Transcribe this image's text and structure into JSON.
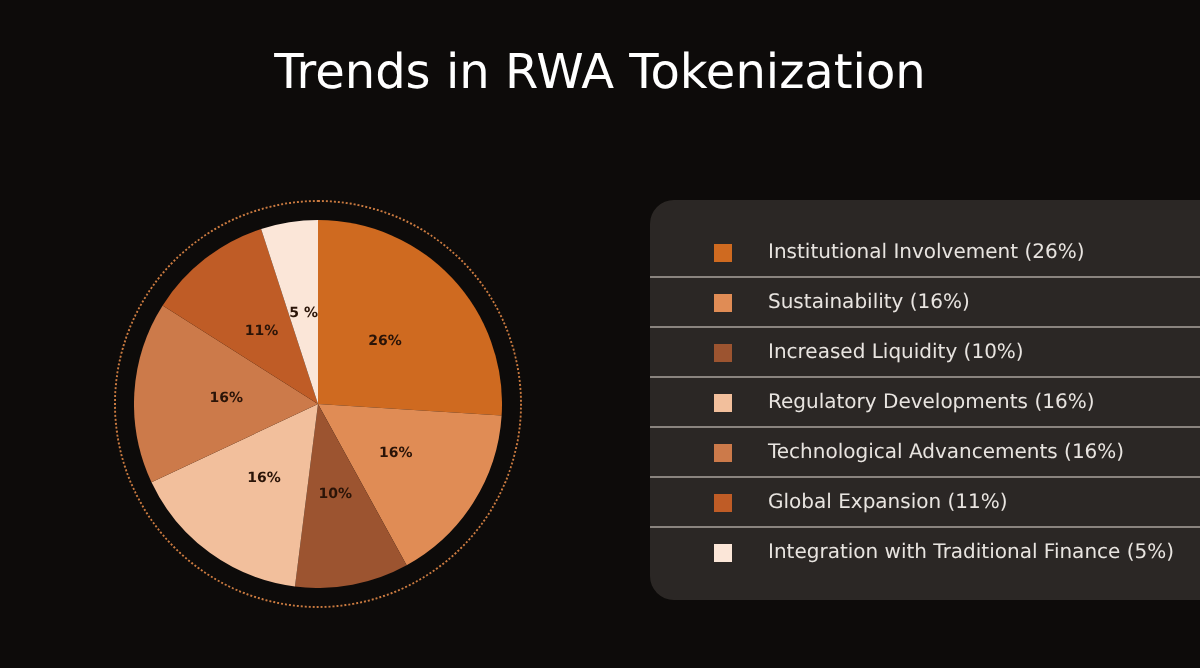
{
  "chart_data": {
    "type": "pie",
    "title": "Trends in RWA Tokenization",
    "categories": [
      "Institutional Involvement (26%)",
      "Sustainability (16%)",
      "Increased Liquidity (10%)",
      "Regulatory Developments (16%)",
      "Technological Advancements (16%)",
      "Global Expansion (11%)",
      "Integration with Traditional Finance (5%)"
    ],
    "values": [
      26,
      16,
      10,
      16,
      16,
      11,
      5
    ],
    "value_labels": [
      "26%",
      "16%",
      "10%",
      "16%",
      "16%",
      "11%",
      "5 %"
    ],
    "colors": [
      "#cf6a20",
      "#e08c55",
      "#9c5430",
      "#f2bf9c",
      "#cc7a4a",
      "#bf5c26",
      "#fbe6d8"
    ],
    "legend": "right"
  }
}
